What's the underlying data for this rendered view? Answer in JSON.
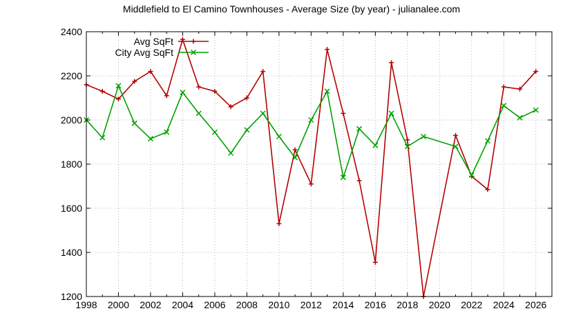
{
  "chart_data": {
    "type": "line",
    "title": "Middlefield to El Camino Townhouses - Average Size (by year) - julianalee.com",
    "xlabel": "",
    "ylabel": "",
    "xlim": [
      1998,
      2027
    ],
    "ylim": [
      1200,
      2400
    ],
    "x_ticks": [
      "1998",
      "2000",
      "2002",
      "2004",
      "2006",
      "2008",
      "2010",
      "2012",
      "2014",
      "2016",
      "2018",
      "2020",
      "2022",
      "2024",
      "2026"
    ],
    "y_ticks": [
      "1200",
      "1400",
      "1600",
      "1800",
      "2000",
      "2200",
      "2400"
    ],
    "grid": true,
    "legend_position": "top-left",
    "series": [
      {
        "name": "Avg SqFt",
        "color": "#b40000",
        "marker": "plus",
        "points": [
          [
            1998,
            2160
          ],
          [
            1999,
            2130
          ],
          [
            2000,
            2095
          ],
          [
            2001,
            2175
          ],
          [
            2002,
            2220
          ],
          [
            2003,
            2110
          ],
          [
            2004,
            2365
          ],
          [
            2005,
            2150
          ],
          [
            2006,
            2130
          ],
          [
            2007,
            2060
          ],
          [
            2008,
            2100
          ],
          [
            2009,
            2220
          ],
          [
            2010,
            1530
          ],
          [
            2011,
            1865
          ],
          [
            2012,
            1710
          ],
          [
            2013,
            2320
          ],
          [
            2014,
            2030
          ],
          [
            2015,
            1725
          ],
          [
            2016,
            1355
          ],
          [
            2017,
            2260
          ],
          [
            2018,
            1910
          ],
          [
            2019,
            1200
          ],
          [
            2021,
            1930
          ],
          [
            2022,
            1745
          ],
          [
            2023,
            1685
          ],
          [
            2024,
            2150
          ],
          [
            2025,
            2140
          ],
          [
            2026,
            2220
          ]
        ]
      },
      {
        "name": "City Avg SqFt",
        "color": "#00a000",
        "marker": "x",
        "points": [
          [
            1998,
            2000
          ],
          [
            1999,
            1920
          ],
          [
            2000,
            2155
          ],
          [
            2001,
            1985
          ],
          [
            2002,
            1915
          ],
          [
            2003,
            1945
          ],
          [
            2004,
            2125
          ],
          [
            2005,
            2030
          ],
          [
            2006,
            1945
          ],
          [
            2007,
            1850
          ],
          [
            2008,
            1955
          ],
          [
            2009,
            2030
          ],
          [
            2010,
            1925
          ],
          [
            2011,
            1830
          ],
          [
            2012,
            2000
          ],
          [
            2013,
            2130
          ],
          [
            2014,
            1740
          ],
          [
            2015,
            1960
          ],
          [
            2016,
            1885
          ],
          [
            2017,
            2030
          ],
          [
            2018,
            1880
          ],
          [
            2019,
            1925
          ],
          [
            2021,
            1880
          ],
          [
            2022,
            1750
          ],
          [
            2023,
            1905
          ],
          [
            2024,
            2065
          ],
          [
            2025,
            2010
          ],
          [
            2026,
            2045
          ]
        ]
      }
    ]
  }
}
